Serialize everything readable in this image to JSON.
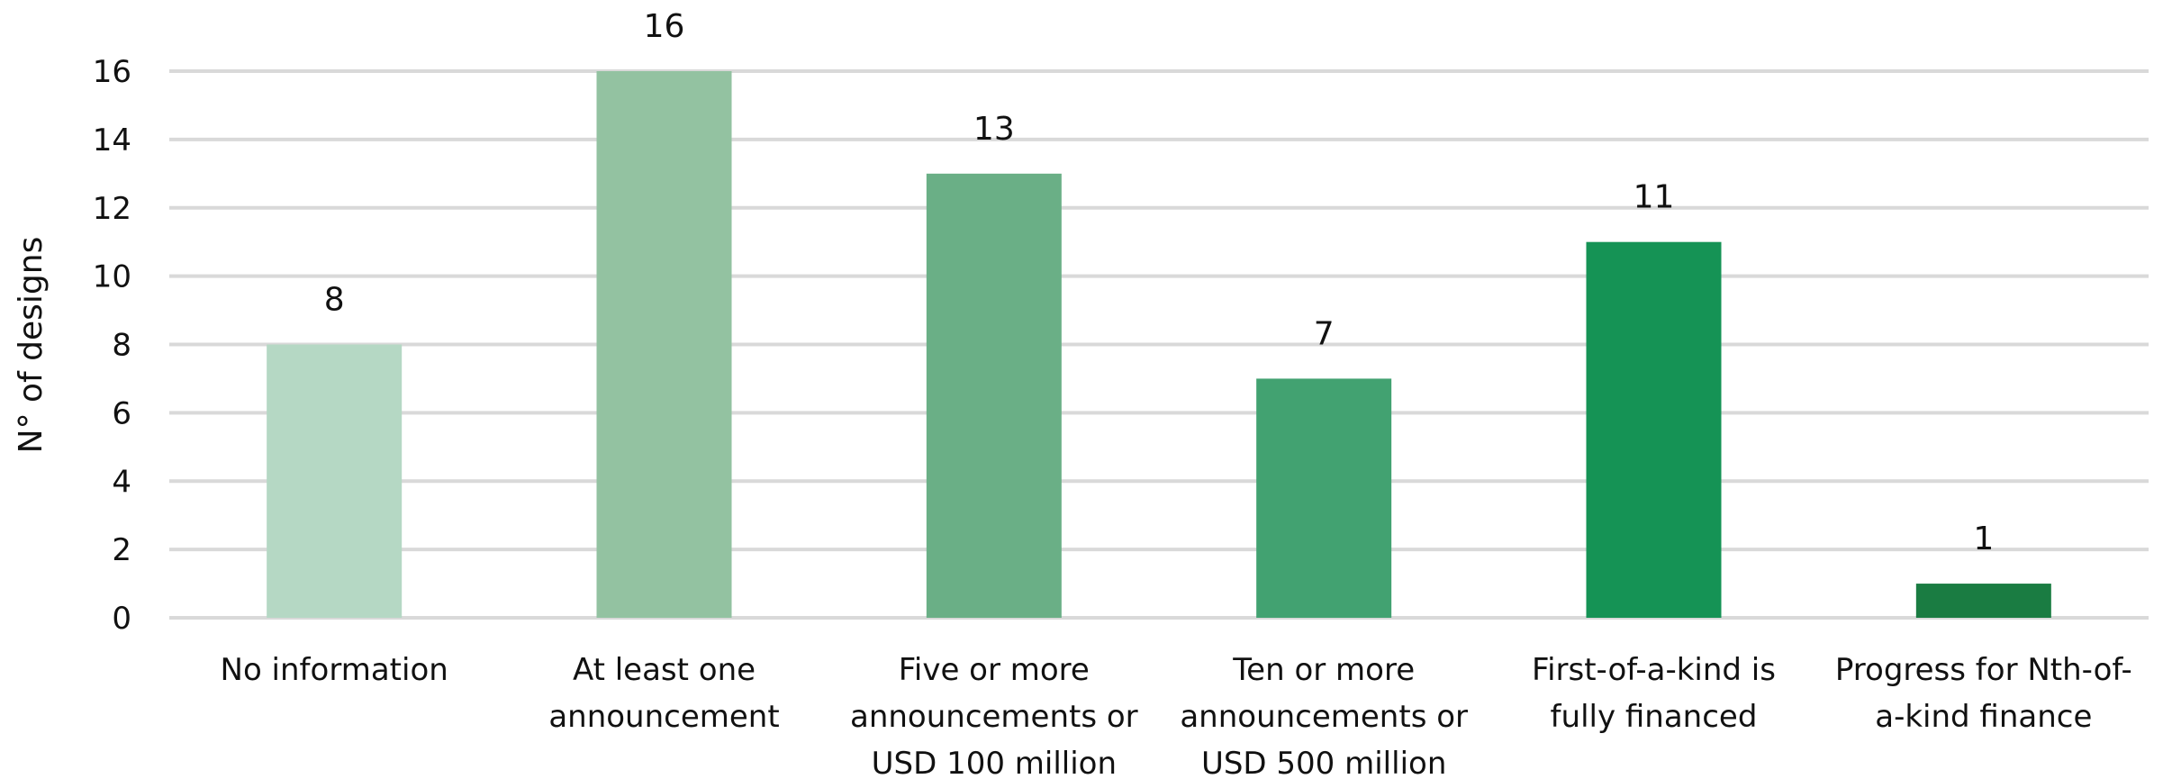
{
  "chart_data": {
    "type": "bar",
    "title": "",
    "xlabel": "",
    "ylabel": "N° of designs",
    "ylim": [
      0,
      16
    ],
    "yticks": [
      0,
      2,
      4,
      6,
      8,
      10,
      12,
      14,
      16
    ],
    "grid": true,
    "legend": "none",
    "categories": [
      [
        "No information"
      ],
      [
        "At least one",
        "announcement"
      ],
      [
        "Five or more",
        "announcements or",
        "USD 100 million"
      ],
      [
        "Ten or more",
        "announcements or",
        "USD 500 million"
      ],
      [
        "First-of-a-kind is",
        "fully financed"
      ],
      [
        "Progress for Nth-of-",
        "a-kind finance"
      ]
    ],
    "values": [
      8,
      16,
      13,
      7,
      11,
      1
    ],
    "data_labels": [
      "8",
      "16",
      "13",
      "7",
      "11",
      "1"
    ],
    "colors": [
      "#b5d8c4",
      "#93c2a1",
      "#6aaf86",
      "#42a271",
      "#159355",
      "#1a7c42"
    ],
    "gridline_color": "#d9d9d9"
  }
}
